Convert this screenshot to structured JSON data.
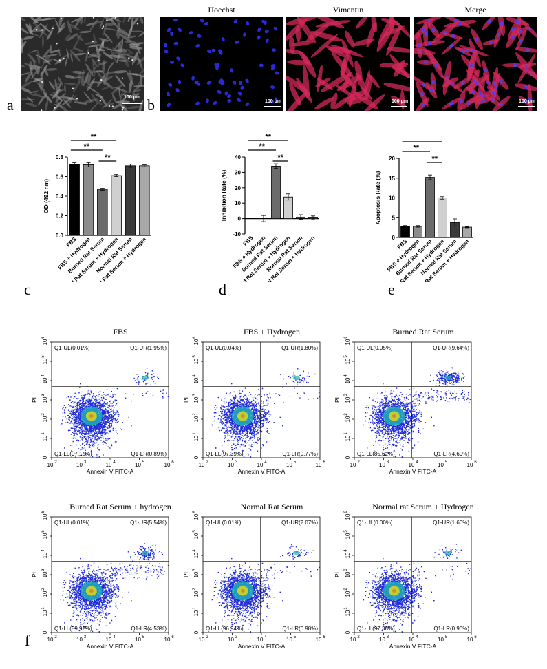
{
  "panel_letters": {
    "a": "a",
    "b": "b",
    "c": "c",
    "d": "d",
    "e": "e",
    "f": "f"
  },
  "micro": {
    "scale_label": "100 μm",
    "titles": [
      "Hoechst",
      "Vimentin",
      "Merge"
    ]
  },
  "colors": {
    "hoechst": "#2a2ad8",
    "vimentin": "#d42a5a",
    "flow_low": "#1f2bd8",
    "flow_mid": "#22b5b5",
    "flow_high": "#d8d81f"
  },
  "chart_data": [
    {
      "type": "bar",
      "id": "c",
      "ylabel": "OD (492 nm)",
      "ylim": [
        0.0,
        0.8
      ],
      "yticks": [
        "0.0",
        "0.2",
        "0.4",
        "0.6",
        "0.8"
      ],
      "categories": [
        "FBS",
        "FBS + Hydrogen",
        "Burned Rat Serum",
        "Burned Rat Serum + Hydrogen",
        "Normal Rat Serum",
        "Normal Rat Serum + Hydrogen"
      ],
      "values": [
        0.72,
        0.72,
        0.47,
        0.61,
        0.71,
        0.71
      ],
      "errors": [
        0.02,
        0.02,
        0.01,
        0.01,
        0.015,
        0.01
      ],
      "bar_colors": [
        "#000000",
        "#8c8c8c",
        "#6b6b6b",
        "#d0d0d0",
        "#3a3a3a",
        "#a8a8a8"
      ],
      "significance": [
        {
          "from": 0,
          "to": 3,
          "label": "**"
        },
        {
          "from": 0,
          "to": 2,
          "label": "**"
        },
        {
          "from": 2,
          "to": 3,
          "label": "**"
        }
      ]
    },
    {
      "type": "bar",
      "id": "d",
      "ylabel": "Inhibition Rate (%)",
      "ylim": [
        -10,
        40
      ],
      "yticks": [
        "-10",
        "0",
        "10",
        "20",
        "30",
        "40"
      ],
      "categories": [
        "FBS",
        "FBS + Hydrogen",
        "Burned Rat Serum",
        "Burned Rat Serum + Hydrogen",
        "Normal Rat Serum",
        "Normal Rat Serum + Hydrogen"
      ],
      "values": [
        0,
        0,
        34,
        14,
        1,
        0.5
      ],
      "errors": [
        0,
        2,
        1.5,
        2,
        1.5,
        1.2
      ],
      "bar_colors": [
        "#000000",
        "#8c8c8c",
        "#6b6b6b",
        "#d0d0d0",
        "#3a3a3a",
        "#a8a8a8"
      ],
      "significance": [
        {
          "from": 0,
          "to": 3,
          "label": "**"
        },
        {
          "from": 0,
          "to": 2,
          "label": "**"
        },
        {
          "from": 2,
          "to": 3,
          "label": "**"
        }
      ]
    },
    {
      "type": "bar",
      "id": "e",
      "ylabel": "Apoptosis Rate (%)",
      "ylim": [
        0,
        20
      ],
      "yticks": [
        "0",
        "5",
        "10",
        "15",
        "20"
      ],
      "categories": [
        "FBS",
        "FBS + Hydrogen",
        "Burned Rat Serum",
        "Burned Rat Serum + Hydrogen",
        "Normal Rat Serum",
        "Normal Rat Serum + Hydrogen"
      ],
      "values": [
        2.8,
        2.8,
        15.2,
        10.0,
        3.8,
        2.6
      ],
      "errors": [
        0.2,
        0.2,
        0.6,
        0.3,
        0.9,
        0.15
      ],
      "bar_colors": [
        "#000000",
        "#8c8c8c",
        "#6b6b6b",
        "#d0d0d0",
        "#3a3a3a",
        "#a8a8a8"
      ],
      "significance": [
        {
          "from": 0,
          "to": 3,
          "label": "**"
        },
        {
          "from": 0,
          "to": 2,
          "label": "**"
        },
        {
          "from": 2,
          "to": 3,
          "label": "**"
        }
      ]
    }
  ],
  "flow": {
    "xlabel": "Annexin V FITC-A",
    "ylabel": "PI",
    "xticks": [
      "10",
      "10",
      "10",
      "10",
      "10"
    ],
    "xtick_exps": [
      "2",
      "3",
      "4",
      "5",
      "6"
    ],
    "yticks": [
      "0",
      "10",
      "10",
      "10",
      "10",
      "10",
      "10"
    ],
    "ytick_exps": [
      "",
      "1",
      "2",
      "3",
      "4",
      "5",
      "6"
    ],
    "plots": [
      {
        "title": "FBS",
        "ul": "Q1-UL(0.01%)",
        "ur": "Q1-UR(1.95%)",
        "ll": "Q1-LL(97.15%)",
        "lr": "Q1-LR(0.89%)"
      },
      {
        "title": "FBS + Hydrogen",
        "ul": "Q1-UL(0.04%)",
        "ur": "Q1-UR(1.80%)",
        "ll": "Q1-LL(97.39%)",
        "lr": "Q1-LR(0.77%)"
      },
      {
        "title": "Burned Rat Serum",
        "ul": "Q1-UL(0.05%)",
        "ur": "Q1-UR(9.64%)",
        "ll": "Q1-LL(85.62%)",
        "lr": "Q1-LR(4.69%)"
      },
      {
        "title": "Burned Rat Serum + hydrogen",
        "ul": "Q1-UL(0.01%)",
        "ur": "Q1-UR(5.54%)",
        "ll": "Q1-LL(89.92%)",
        "lr": "Q1-LR(4.53%)"
      },
      {
        "title": "Normal Rat Serum",
        "ul": "Q1-UL(0.01%)",
        "ur": "Q1-UR(2.07%)",
        "ll": "Q1-LL(96.94%)",
        "lr": "Q1-LR(0.98%)"
      },
      {
        "title": "Normal rat Serum + Hydrogen",
        "ul": "Q1-UL(0.00%)",
        "ur": "Q1-UR(1.66%)",
        "ll": "Q1-LL(97.38%)",
        "lr": "Q1-LR(0.96%)"
      }
    ]
  }
}
